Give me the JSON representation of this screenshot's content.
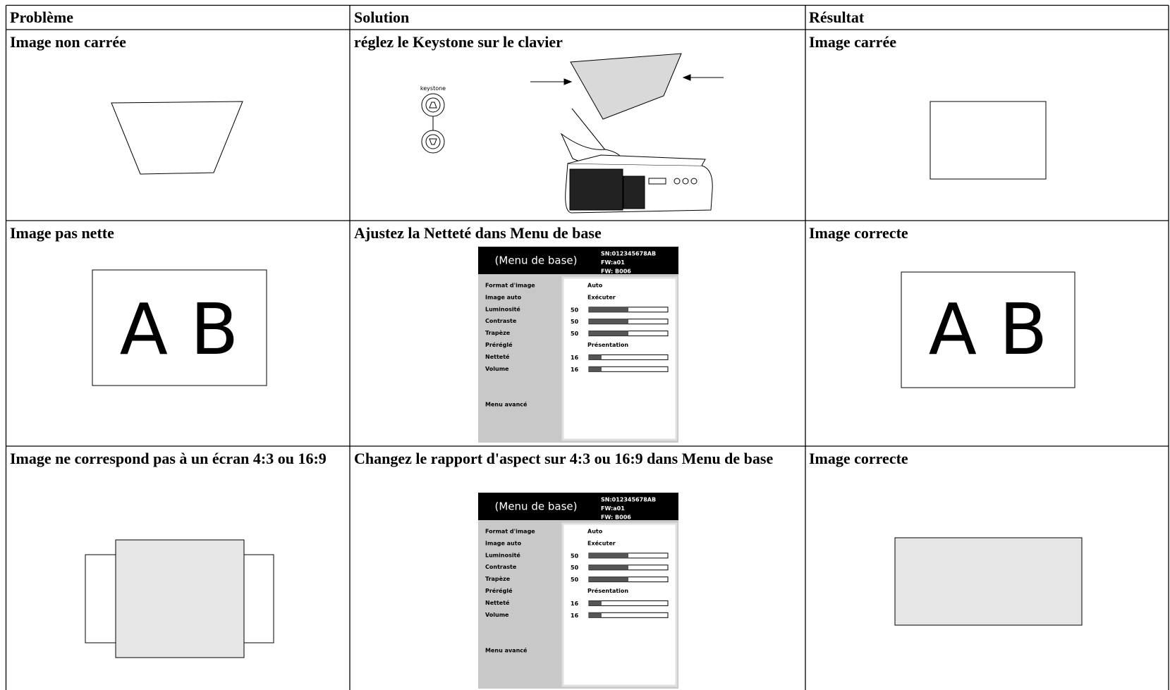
{
  "table": {
    "headers": [
      "Problème",
      "Solution",
      "Résultat"
    ],
    "rows": [
      {
        "problem": "Image non carrée",
        "solution": "réglez le Keystone sur le clavier",
        "result": "Image carrée",
        "keypad_label": "keystone"
      },
      {
        "problem": "Image pas nette",
        "solution": "Ajustez la Netteté dans Menu de base",
        "result": "Image correcte",
        "problem_image_text": "A B",
        "result_image_text": "A B",
        "menu": {
          "title": "(Menu de base)",
          "info": [
            "SN:012345678AB",
            "FW:a01",
            "FW: B006"
          ],
          "items": [
            {
              "label": "Format d'image",
              "value": "Auto"
            },
            {
              "label": "Image auto",
              "value": "Exécuter"
            },
            {
              "label": "Luminosité",
              "value": 50
            },
            {
              "label": "Contraste",
              "value": 50
            },
            {
              "label": "Trapèze",
              "value": 50
            },
            {
              "label": "Préréglé",
              "value": "Présentation"
            },
            {
              "label": "Netteté",
              "value": 16
            },
            {
              "label": "Volume",
              "value": 16
            },
            {
              "label": "Menu avancé"
            }
          ]
        }
      },
      {
        "problem": "Image ne correspond pas à un écran 4:3 ou 16:9",
        "solution": "Changez le rapport d'aspect sur 4:3 ou 16:9 dans Menu de base",
        "result": "Image correcte",
        "menu": {
          "title": "(Menu de base)",
          "info": [
            "SN:012345678AB",
            "FW:a01",
            "FW: B006"
          ],
          "items": [
            {
              "label": "Format d'image",
              "value": "Auto"
            },
            {
              "label": "Image auto",
              "value": "Exécuter"
            },
            {
              "label": "Luminosité",
              "value": 50
            },
            {
              "label": "Contraste",
              "value": 50
            },
            {
              "label": "Trapèze",
              "value": 50
            },
            {
              "label": "Préréglé",
              "value": "Présentation"
            },
            {
              "label": "Netteté",
              "value": 16
            },
            {
              "label": "Volume",
              "value": 16
            },
            {
              "label": "Menu avancé"
            }
          ]
        }
      }
    ]
  }
}
